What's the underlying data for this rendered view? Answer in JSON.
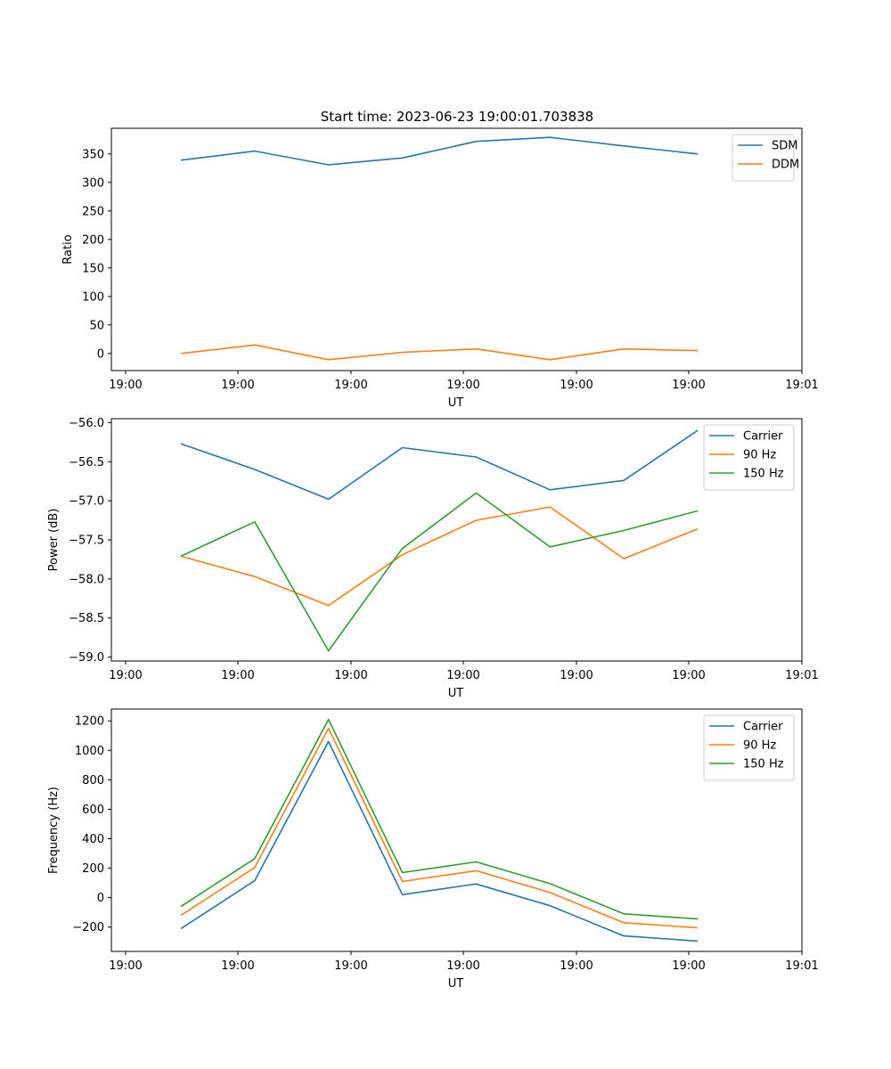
{
  "title": "Start time: 2023-06-23 19:00:01.703838",
  "colors": {
    "blue": "#1f77b4",
    "orange": "#ff7f0e",
    "green": "#2ca02c"
  },
  "chart_data": [
    {
      "type": "line",
      "xlabel": "UT",
      "ylabel": "Ratio",
      "x_tick_labels": [
        "19:00",
        "19:00",
        "19:00",
        "19:00",
        "19:00",
        "19:00",
        "19:00",
        "19:01"
      ],
      "ylim": [
        -30,
        395
      ],
      "y_ticks": [
        0,
        50,
        100,
        150,
        200,
        250,
        300,
        350
      ],
      "y_tick_labels": [
        "0",
        "50",
        "100",
        "150",
        "200",
        "250",
        "300",
        "350"
      ],
      "legend_position": "top-right",
      "series": [
        {
          "name": "SDM",
          "color": "#1f77b4",
          "values": [
            339,
            355,
            331,
            343,
            372,
            379,
            364,
            350
          ]
        },
        {
          "name": "DDM",
          "color": "#ff7f0e",
          "values": [
            0,
            15,
            -11,
            2,
            8,
            -11,
            8,
            5
          ]
        }
      ]
    },
    {
      "type": "line",
      "xlabel": "UT",
      "ylabel": "Power (dB)",
      "x_tick_labels": [
        "19:00",
        "19:00",
        "19:00",
        "19:00",
        "19:00",
        "19:00",
        "19:00",
        "19:01"
      ],
      "ylim": [
        -59.05,
        -55.95
      ],
      "y_ticks": [
        -59.0,
        -58.5,
        -58.0,
        -57.5,
        -57.0,
        -56.5,
        -56.0
      ],
      "y_tick_labels": [
        "−59.0",
        "−58.5",
        "−58.0",
        "−57.5",
        "−57.0",
        "−56.5",
        "−56.0"
      ],
      "legend_position": "top-right",
      "series": [
        {
          "name": "Carrier",
          "color": "#1f77b4",
          "values": [
            -56.27,
            -56.6,
            -56.98,
            -56.32,
            -56.44,
            -56.86,
            -56.74,
            -56.1
          ]
        },
        {
          "name": "90 Hz",
          "color": "#ff7f0e",
          "values": [
            -57.71,
            -57.97,
            -58.34,
            -57.69,
            -57.25,
            -57.08,
            -57.74,
            -57.36
          ]
        },
        {
          "name": "150 Hz",
          "color": "#2ca02c",
          "values": [
            -57.71,
            -57.27,
            -58.92,
            -57.61,
            -56.9,
            -57.59,
            -57.38,
            -57.13
          ]
        }
      ]
    },
    {
      "type": "line",
      "xlabel": "UT",
      "ylabel": "Frequency (Hz)",
      "x_tick_labels": [
        "19:00",
        "19:00",
        "19:00",
        "19:00",
        "19:00",
        "19:00",
        "19:00",
        "19:01"
      ],
      "ylim": [
        -365,
        1280
      ],
      "y_ticks": [
        -200,
        0,
        200,
        400,
        600,
        800,
        1000,
        1200
      ],
      "y_tick_labels": [
        "−200",
        "0",
        "200",
        "400",
        "600",
        "800",
        "1000",
        "1200"
      ],
      "legend_position": "top-right",
      "series": [
        {
          "name": "Carrier",
          "color": "#1f77b4",
          "values": [
            -210,
            115,
            1060,
            20,
            93,
            -55,
            -260,
            -295
          ]
        },
        {
          "name": "90 Hz",
          "color": "#ff7f0e",
          "values": [
            -120,
            205,
            1150,
            110,
            183,
            35,
            -170,
            -205
          ]
        },
        {
          "name": "150 Hz",
          "color": "#2ca02c",
          "values": [
            -60,
            265,
            1210,
            170,
            243,
            95,
            -110,
            -145
          ]
        }
      ]
    }
  ]
}
